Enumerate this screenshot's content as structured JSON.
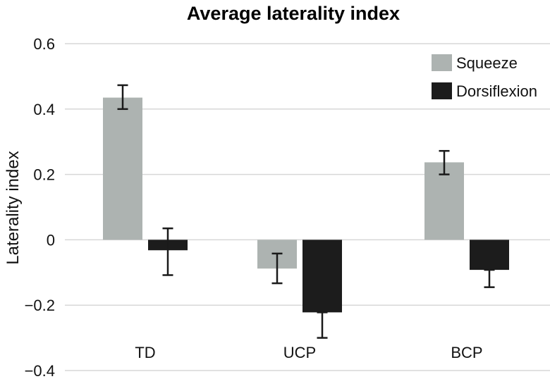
{
  "chart_data": {
    "type": "bar",
    "title": "Average laterality index",
    "xlabel": "",
    "ylabel": "Laterality index",
    "ylim": [
      -0.4,
      0.6
    ],
    "yticks": [
      0.6,
      0.4,
      0.2,
      0,
      -0.2,
      -0.4
    ],
    "ytick_labels": [
      "0.6",
      "0.4",
      "0.2",
      "0",
      "−0.2",
      "−0.4"
    ],
    "categories": [
      "TD",
      "UCP",
      "BCP"
    ],
    "grid": true,
    "legend_position": "top-right",
    "series": [
      {
        "name": "Squeeze",
        "color": "#adb3b1",
        "values": [
          0.435,
          -0.088,
          0.237
        ],
        "error_low": [
          0.4,
          -0.133,
          0.2
        ],
        "error_high": [
          0.473,
          -0.042,
          0.272
        ]
      },
      {
        "name": "Dorsiflexion",
        "color": "#1c1c1c",
        "values": [
          -0.032,
          -0.222,
          -0.092
        ],
        "error_low": [
          -0.108,
          -0.3,
          -0.145
        ],
        "error_high": [
          0.035,
          -0.222,
          -0.092
        ]
      }
    ]
  }
}
